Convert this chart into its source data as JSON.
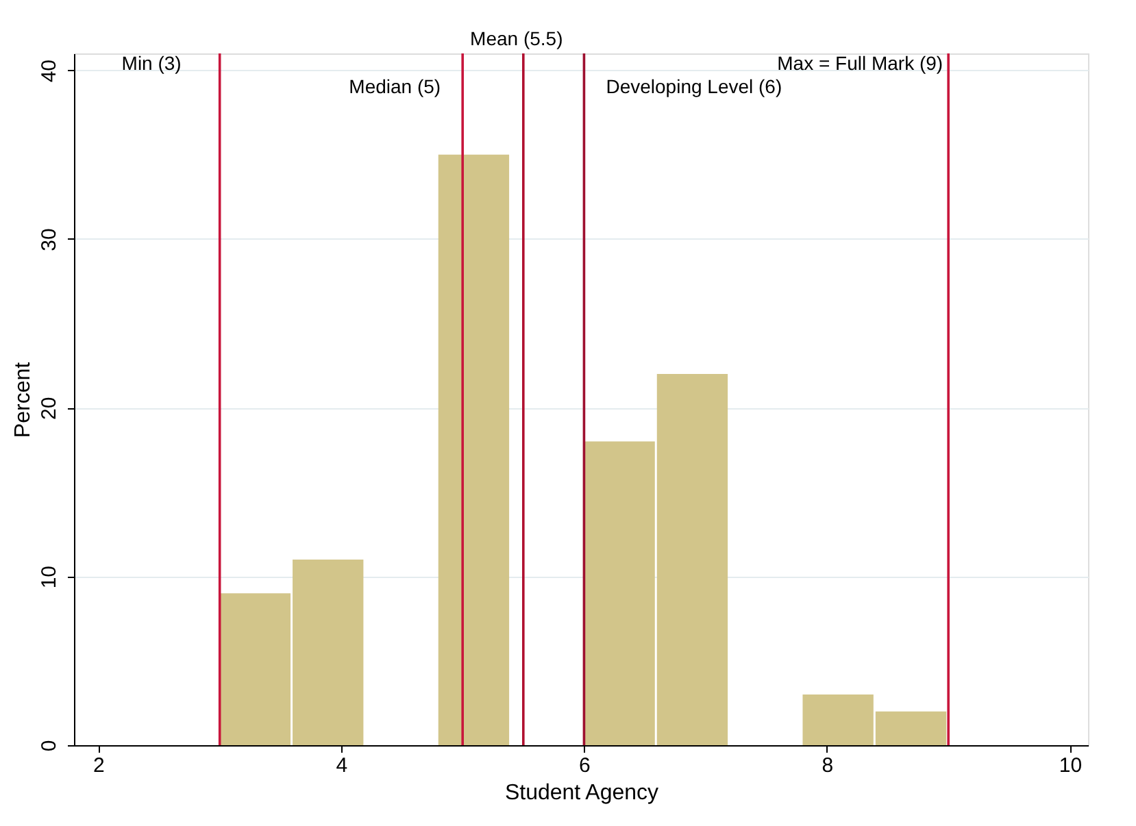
{
  "chart_data": {
    "type": "histogram",
    "xlabel": "Student Agency",
    "ylabel": "Percent",
    "bins": [
      3,
      3.6,
      4.2,
      4.8,
      5.4,
      6.0,
      6.6,
      7.2,
      7.8,
      8.4,
      9.0
    ],
    "values": [
      9,
      11,
      0,
      35,
      0,
      18,
      22,
      0,
      3,
      2
    ],
    "color": "#d2c58a",
    "xlim": [
      1.8,
      10.15
    ],
    "xticks": [
      2,
      4,
      6,
      8,
      10
    ],
    "ylim": [
      0,
      41
    ],
    "yticks": [
      0,
      10,
      20,
      30,
      40
    ],
    "grid": "y",
    "ref_lines": [
      {
        "axis": "x",
        "value": 3,
        "label": "Min (3)",
        "color": "#c8163c"
      },
      {
        "axis": "x",
        "value": 5,
        "label": "Median (5)",
        "color": "#c8163c"
      },
      {
        "axis": "x",
        "value": 5.5,
        "label": "Mean (5.5)",
        "color": "#b01030"
      },
      {
        "axis": "x",
        "value": 6,
        "label": "Developing Level (6)",
        "color": "#9e1030"
      },
      {
        "axis": "x",
        "value": 9,
        "label": "Max = Full Mark (9)",
        "color": "#c8163c"
      }
    ]
  }
}
